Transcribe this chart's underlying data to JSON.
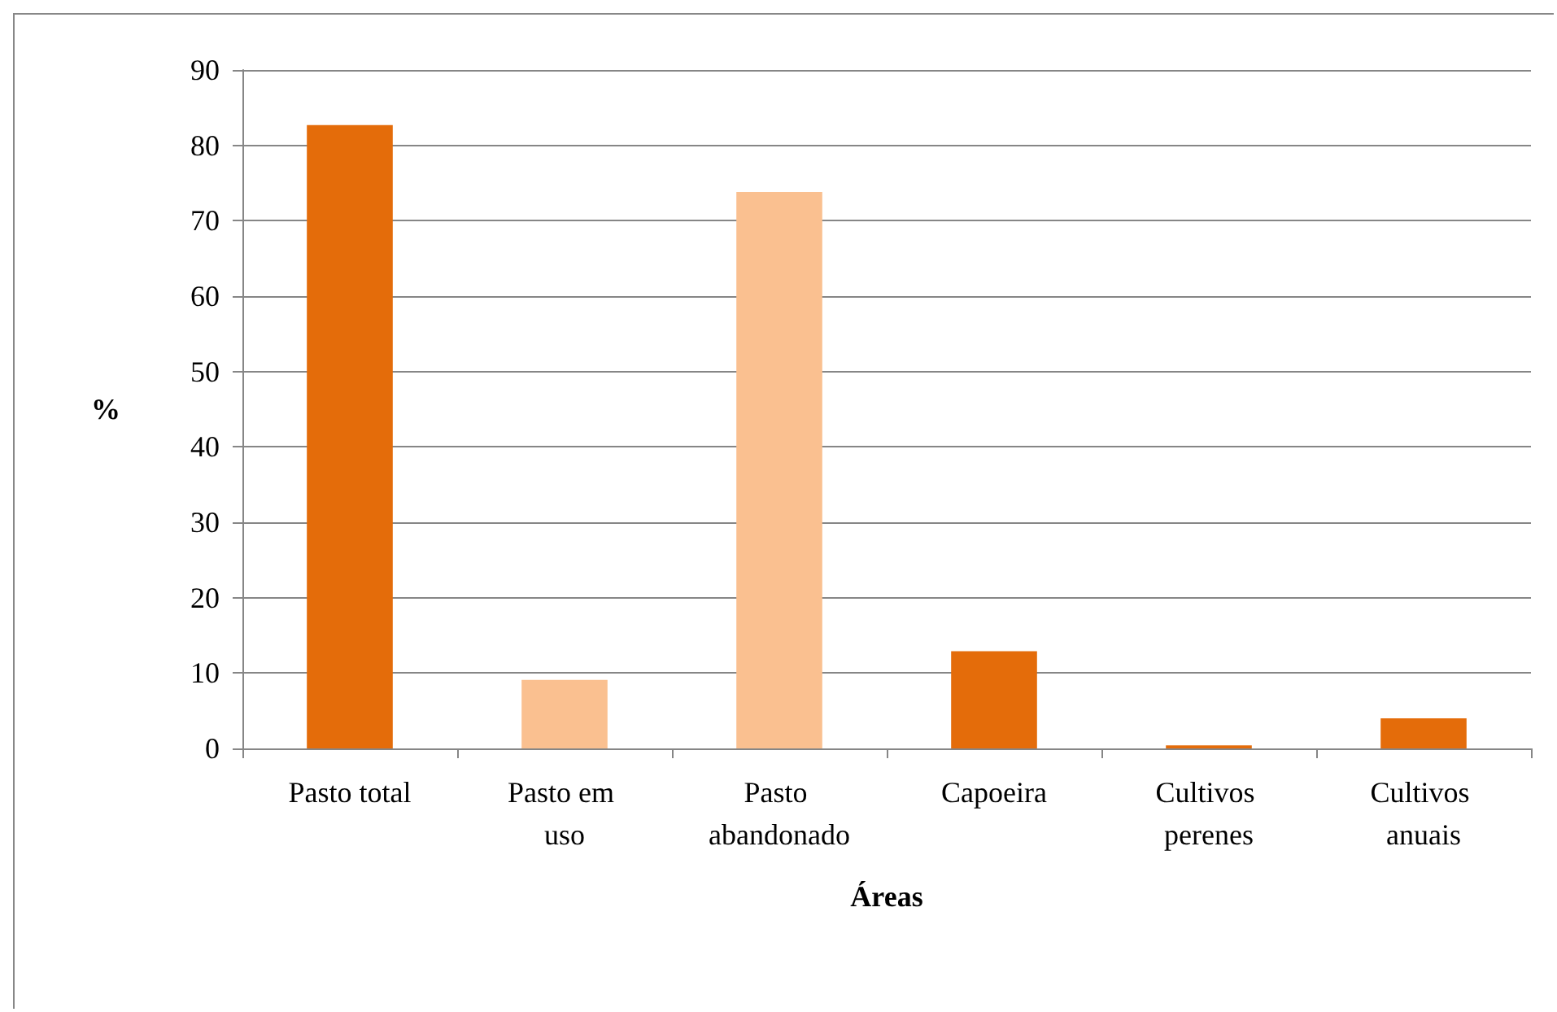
{
  "chart_data": {
    "type": "bar",
    "xlabel": "Áreas",
    "ylabel": "%",
    "categories": [
      "Pasto total",
      "Pasto em uso",
      "Pasto abandonado",
      "Capoeira",
      "Cultivos perenes",
      "Cultivos anuais"
    ],
    "values": [
      82.7,
      9.1,
      73.8,
      12.9,
      0.4,
      4.0
    ],
    "colors": [
      "#e46c0a",
      "#fac090",
      "#fac090",
      "#e46c0a",
      "#e46c0a",
      "#e46c0a"
    ],
    "ylim": [
      0,
      90
    ],
    "yticks": [
      0,
      10,
      20,
      30,
      40,
      50,
      60,
      70,
      80,
      90
    ],
    "grid": "y"
  }
}
